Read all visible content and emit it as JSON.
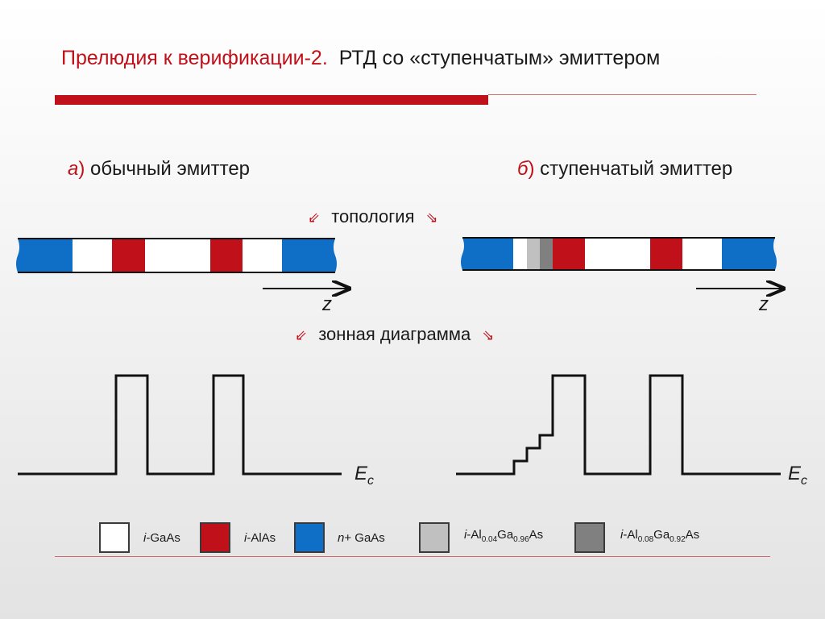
{
  "title": {
    "red_part": "Прелюдия к верификации-2.",
    "black_part": "РТД со «ступенчатым» эмиттером"
  },
  "left_caption": {
    "letter": "а",
    "text": "обычный эмиттер"
  },
  "right_caption": {
    "letter": "б",
    "text": "ступенчатый эмиттер"
  },
  "section_topology": "топология",
  "section_band": "зонная диаграмма",
  "z_label": "z",
  "ec_label": {
    "main": "E",
    "sub": "c"
  },
  "legend": [
    {
      "label_italic": "i",
      "label_rest": "-GaAs",
      "color": "#ffffff"
    },
    {
      "label_italic": "i",
      "label_rest": "-AlAs",
      "color": "#c0111a"
    },
    {
      "label_italic": "n",
      "label_rest": "+ GaAs",
      "color": "#0f6fc6"
    },
    {
      "label_italic": "i",
      "label_parts": [
        "-Al",
        "0.04",
        "Ga",
        "0.96",
        "As"
      ],
      "color": "#c0c0c0"
    },
    {
      "label_italic": "i",
      "label_parts": [
        "-Al",
        "0.08",
        "Ga",
        "0.92",
        "As"
      ],
      "color": "#808080"
    }
  ],
  "colors": {
    "accent_red": "#c0111a",
    "blue": "#0f6fc6",
    "light_gray": "#c0c0c0",
    "dark_gray": "#808080"
  }
}
